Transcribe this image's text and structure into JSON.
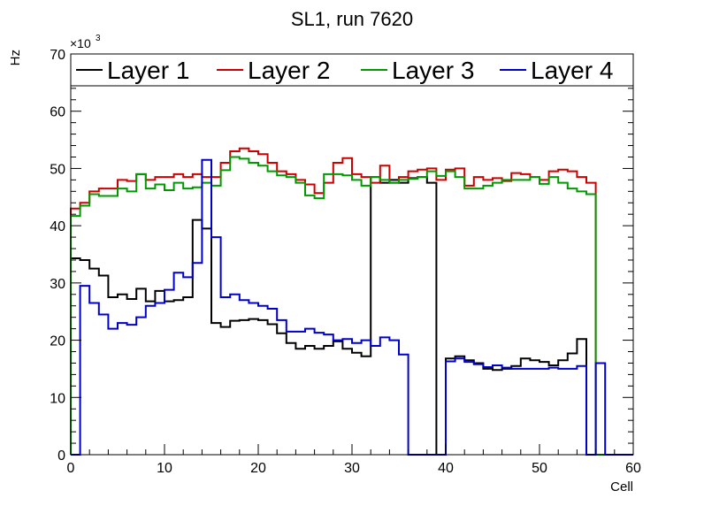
{
  "chart_data": {
    "type": "line",
    "step": true,
    "title": "SL1, run 7620",
    "xlabel": "Cell",
    "ylabel": "Hz",
    "y_multiplier_label": "×10",
    "y_multiplier_exponent": "3",
    "xlim": [
      0,
      60
    ],
    "ylim": [
      0,
      70
    ],
    "x_ticks": [
      0,
      10,
      20,
      30,
      40,
      50,
      60
    ],
    "y_ticks": [
      0,
      10,
      20,
      30,
      40,
      50,
      60,
      70
    ],
    "grid": false,
    "legend_position": "top",
    "series": [
      {
        "name": "Layer 1",
        "color": "#000000",
        "values": [
          34.3,
          34.0,
          32.5,
          31.3,
          27.5,
          28.0,
          27.2,
          29.0,
          26.8,
          28.6,
          26.8,
          27.0,
          27.5,
          41.0,
          39.5,
          23.0,
          22.3,
          23.4,
          23.5,
          23.7,
          23.5,
          22.8,
          21.2,
          19.5,
          18.5,
          19.0,
          18.5,
          19.0,
          19.8,
          18.5,
          17.8,
          17.2,
          48.5,
          47.5,
          48.0,
          47.5,
          48.3,
          48.5,
          47.5,
          0,
          16.8,
          17.2,
          16.5,
          16.0,
          15.0,
          14.8,
          15.0,
          15.5,
          16.8,
          16.5,
          16.2,
          15.6,
          16.5,
          17.7,
          20.2,
          0,
          0,
          0,
          0,
          0
        ]
      },
      {
        "name": "Layer 2",
        "color": "#cc0000",
        "values": [
          43.0,
          44.0,
          46.0,
          46.5,
          46.5,
          48.0,
          47.8,
          49.0,
          48.0,
          48.5,
          48.5,
          49.0,
          48.5,
          49.0,
          48.5,
          48.5,
          51.0,
          53.0,
          53.5,
          53.0,
          52.5,
          51.0,
          49.5,
          49.0,
          48.0,
          47.2,
          45.7,
          47.5,
          51.0,
          51.8,
          49.0,
          48.5,
          47.5,
          50.5,
          47.5,
          48.5,
          49.5,
          49.8,
          50.0,
          48.0,
          49.8,
          50.0,
          47.0,
          48.5,
          48.0,
          48.3,
          47.8,
          49.2,
          49.0,
          48.5,
          48.0,
          49.5,
          49.8,
          49.5,
          48.5,
          47.5,
          0,
          0,
          0,
          0
        ]
      },
      {
        "name": "Layer 3",
        "color": "#009900",
        "values": [
          41.7,
          43.5,
          45.5,
          45.2,
          45.2,
          46.5,
          46.0,
          49.0,
          46.5,
          47.2,
          46.2,
          47.5,
          46.5,
          46.7,
          47.5,
          47.0,
          49.7,
          52.0,
          51.7,
          51.0,
          50.5,
          49.5,
          48.8,
          48.5,
          47.5,
          45.3,
          44.8,
          49.0,
          49.0,
          48.8,
          48.0,
          47.0,
          48.5,
          48.0,
          47.5,
          48.0,
          48.2,
          48.5,
          49.5,
          48.7,
          49.5,
          48.5,
          46.5,
          46.5,
          47.0,
          47.5,
          48.0,
          48.0,
          48.0,
          48.5,
          47.3,
          48.5,
          47.5,
          46.5,
          46.0,
          45.5,
          0,
          0,
          0,
          0
        ]
      },
      {
        "name": "Layer 4",
        "color": "#0000cc",
        "values": [
          0,
          29.5,
          26.5,
          24.5,
          22.0,
          23.0,
          22.7,
          24.0,
          26.0,
          26.5,
          28.8,
          31.8,
          31.0,
          33.5,
          51.5,
          38.0,
          27.5,
          28.0,
          27.0,
          26.5,
          26.0,
          25.5,
          23.5,
          21.5,
          21.5,
          22.0,
          21.3,
          21.0,
          20.0,
          20.2,
          19.5,
          20.0,
          19.0,
          20.5,
          20.0,
          17.5,
          0,
          0,
          0,
          0,
          16.3,
          16.8,
          16.2,
          15.8,
          15.3,
          15.6,
          15.2,
          15.0,
          15.0,
          15.0,
          15.0,
          15.2,
          15.0,
          15.0,
          15.5,
          0,
          16.0,
          0,
          0,
          0
        ]
      }
    ]
  }
}
